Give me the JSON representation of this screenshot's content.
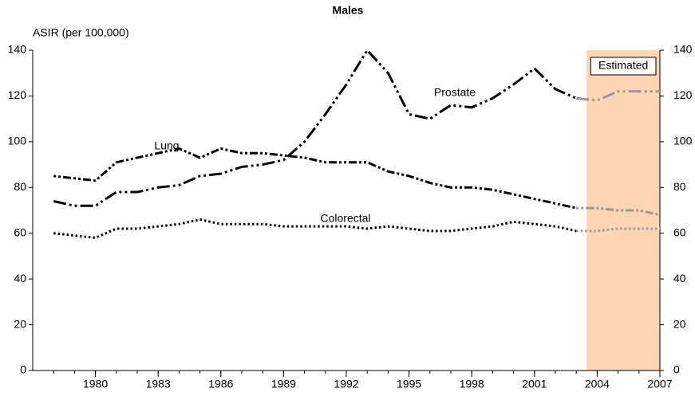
{
  "chart_data": {
    "type": "line",
    "title": "Males",
    "y_label": "ASIR (per 100,000)",
    "estimated_label": "Estimated",
    "estimated_range": [
      2003.5,
      2007
    ],
    "estimated_color": "#fcd5b4",
    "x": [
      1978,
      1979,
      1980,
      1981,
      1982,
      1983,
      1984,
      1985,
      1986,
      1987,
      1988,
      1989,
      1990,
      1991,
      1992,
      1993,
      1994,
      1995,
      1996,
      1997,
      1998,
      1999,
      2000,
      2001,
      2002,
      2003,
      2004,
      2005,
      2006,
      2007
    ],
    "series": [
      {
        "name": "Prostate",
        "color": "#000000",
        "estimated_color": "#999999",
        "values": [
          74,
          72,
          72,
          78,
          78,
          80,
          81,
          85,
          86,
          89,
          90,
          92,
          100,
          112,
          125,
          140,
          130,
          112,
          110,
          116,
          115,
          119,
          125,
          132,
          123,
          119,
          118,
          122,
          122,
          122
        ]
      },
      {
        "name": "Lung",
        "color": "#000000",
        "estimated_color": "#999999",
        "values": [
          85,
          84,
          83,
          91,
          93,
          95,
          97,
          93,
          97,
          95,
          95,
          94,
          93,
          91,
          91,
          91,
          87,
          85,
          82,
          80,
          80,
          79,
          77,
          75,
          73,
          71,
          71,
          70,
          70,
          68
        ]
      },
      {
        "name": "Colorectal",
        "color": "#000000",
        "estimated_color": "#999999",
        "values": [
          60,
          59,
          58,
          62,
          62,
          63,
          64,
          66,
          64,
          64,
          64,
          63,
          63,
          63,
          63,
          62,
          63,
          62,
          61,
          61,
          62,
          63,
          65,
          64,
          63,
          61,
          61,
          62,
          62,
          62
        ]
      }
    ],
    "xlim": [
      1977,
      2007
    ],
    "xticks": [
      1980,
      1983,
      1986,
      1989,
      1992,
      1995,
      1998,
      2001,
      2004,
      2007
    ],
    "ylim": [
      0,
      140
    ],
    "yticks": [
      0,
      20,
      40,
      60,
      80,
      100,
      120,
      140
    ],
    "y2lim": [
      0,
      140
    ],
    "y2ticks": [
      0,
      20,
      40,
      60,
      80,
      100,
      120,
      140
    ]
  }
}
